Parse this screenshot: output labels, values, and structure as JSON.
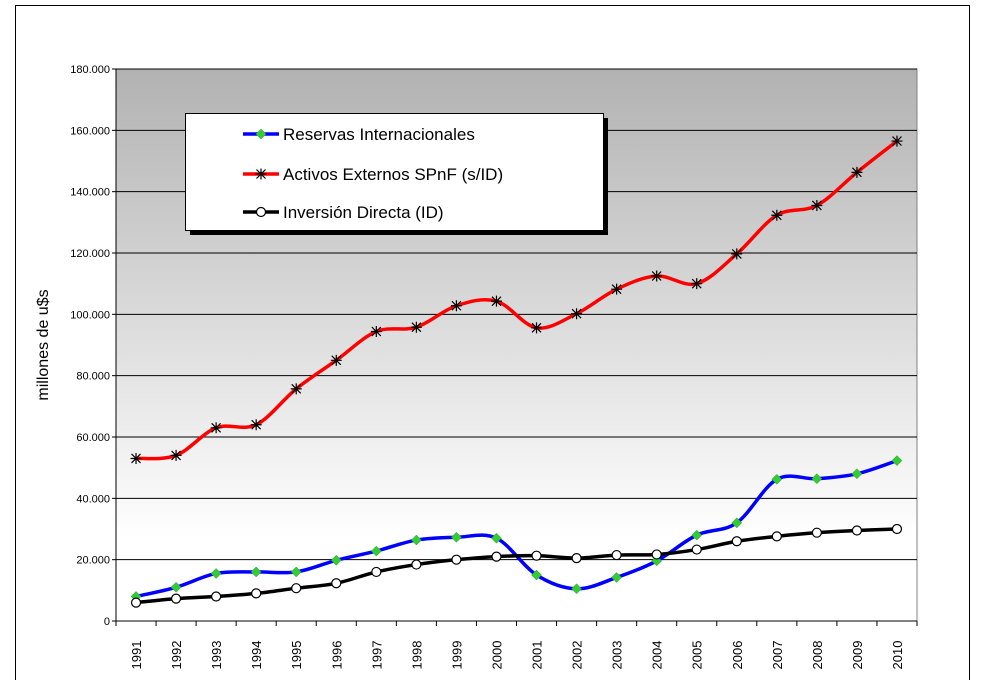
{
  "chart_data": {
    "type": "line",
    "ylabel": "millones de u$s",
    "categories": [
      "1991",
      "1992",
      "1993",
      "1994",
      "1995",
      "1996",
      "1997",
      "1998",
      "1999",
      "2000",
      "2001",
      "2002",
      "2003",
      "2004",
      "2005",
      "2006",
      "2007",
      "2008",
      "2009",
      "2010"
    ],
    "series": [
      {
        "name": "Reservas Internacionales",
        "color": "#0000ff",
        "marker": "diamond",
        "values": [
          8000,
          11000,
          15500,
          16000,
          16000,
          19800,
          22800,
          26400,
          27300,
          27000,
          15000,
          10500,
          14200,
          19600,
          28000,
          32000,
          46200,
          46400,
          48000,
          52300
        ]
      },
      {
        "name": "Activos Externos SPnF (s/ID)",
        "color": "#ff0000",
        "marker": "asterisk",
        "values": [
          53000,
          54000,
          63000,
          64000,
          75700,
          85000,
          94400,
          95800,
          102800,
          104300,
          95600,
          100200,
          108200,
          112500,
          110000,
          119700,
          132300,
          135500,
          146300,
          156500
        ]
      },
      {
        "name": "Inversión Directa (ID)",
        "color": "#000000",
        "marker": "circle",
        "values": [
          6000,
          7300,
          8000,
          9000,
          10700,
          12300,
          16000,
          18400,
          20000,
          21000,
          21300,
          20500,
          21500,
          21700,
          23300,
          26000,
          27600,
          28800,
          29500,
          30000
        ]
      }
    ],
    "ylim": [
      0,
      180000
    ],
    "yticks": [
      0,
      {
        "value": 20000,
        "label": "20.000"
      },
      {
        "value": 40000,
        "label": "40.000"
      },
      {
        "value": 60000,
        "label": "60.000"
      },
      {
        "value": 80000,
        "label": "80.000"
      },
      {
        "value": 100000,
        "label": "100.000"
      },
      {
        "value": 120000,
        "label": "120.000"
      },
      {
        "value": 140000,
        "label": "140.000"
      },
      {
        "value": 160000,
        "label": "160.000"
      },
      {
        "value": 180000,
        "label": "180.000"
      }
    ],
    "grid": true,
    "legend": "upper left"
  }
}
